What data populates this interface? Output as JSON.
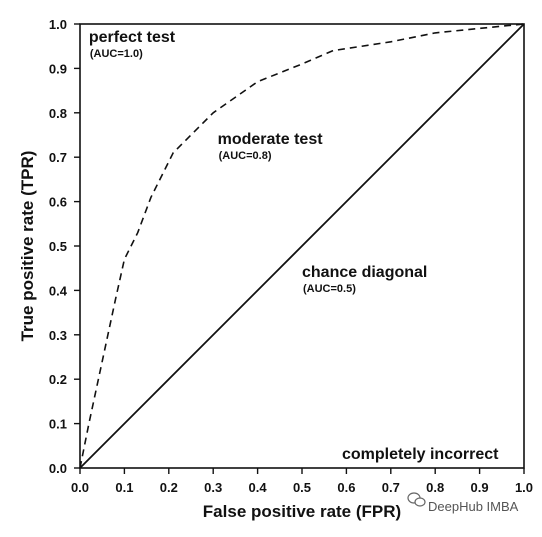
{
  "chart_data": {
    "type": "line",
    "xlabel": "False positive rate (FPR)",
    "ylabel": "True positive rate (TPR)",
    "xlim": [
      0,
      1
    ],
    "ylim": [
      0,
      1
    ],
    "x_ticks": [
      "0.0",
      "0.1",
      "0.2",
      "0.3",
      "0.4",
      "0.5",
      "0.6",
      "0.7",
      "0.8",
      "0.9",
      "1.0"
    ],
    "y_ticks": [
      "0.0",
      "0.1",
      "0.2",
      "0.3",
      "0.4",
      "0.5",
      "0.6",
      "0.7",
      "0.8",
      "0.9",
      "1.0"
    ],
    "grid": false,
    "series": [
      {
        "style": "dashed",
        "color": "#111111",
        "x": [
          0.0,
          0.02,
          0.05,
          0.08,
          0.1,
          0.13,
          0.16,
          0.21,
          0.3,
          0.4,
          0.5,
          0.57,
          0.7,
          0.8,
          0.9,
          1.0
        ],
        "y": [
          0.0,
          0.1,
          0.24,
          0.38,
          0.47,
          0.53,
          0.61,
          0.71,
          0.8,
          0.87,
          0.91,
          0.94,
          0.96,
          0.98,
          0.99,
          1.0
        ]
      },
      {
        "style": "solid",
        "color": "#111111",
        "x": [
          0.0,
          1.0
        ],
        "y": [
          0.0,
          1.0
        ]
      }
    ],
    "annotations": [
      {
        "text": "perfect test",
        "sub": "(AUC=1.0)",
        "x": 0.02,
        "y": 0.96
      },
      {
        "text": "moderate test",
        "sub": "(AUC=0.8)",
        "x": 0.31,
        "y": 0.73
      },
      {
        "text": "chance diagonal",
        "sub": "(AUC=0.5)",
        "x": 0.5,
        "y": 0.43
      },
      {
        "text": "completely incorrect",
        "sub": "",
        "x": 0.59,
        "y": 0.02
      }
    ]
  },
  "watermark": {
    "text": "DeepHub IMBA",
    "icon": "wechat-icon"
  }
}
